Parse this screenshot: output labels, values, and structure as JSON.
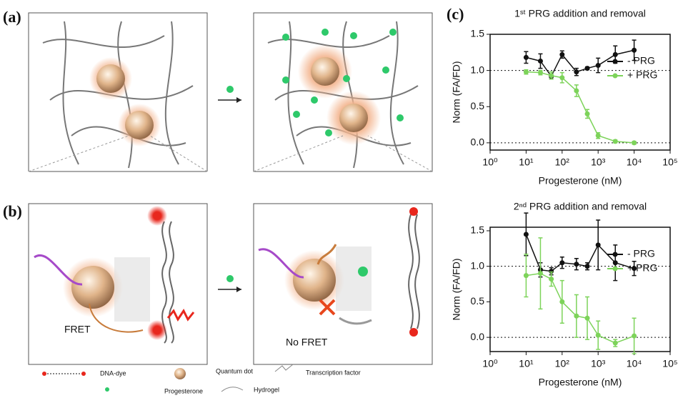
{
  "panel_labels": [
    "(a)",
    "(b)",
    "(c)"
  ],
  "diagram": {
    "fret": "FRET",
    "no_fret": "No FRET"
  },
  "legend": [
    "DNA-dye",
    "Quantum dot",
    "Transcription factor",
    "Progesterone",
    "Hydrogel"
  ],
  "chart_data": [
    {
      "type": "scatter",
      "title": "1ˢᵗ PRG addition and removal",
      "xlabel": "Progesterone (nM)",
      "ylabel": "Norm (FA/FD)",
      "xscale": "log",
      "xlim": [
        1,
        100000
      ],
      "xticks": [
        {
          "value": 1,
          "label": "10⁰"
        },
        {
          "value": 10,
          "label": "10¹"
        },
        {
          "value": 100,
          "label": "10²"
        },
        {
          "value": 1000,
          "label": "10³"
        },
        {
          "value": 10000,
          "label": "10⁴"
        },
        {
          "value": 100000,
          "label": "10⁵"
        }
      ],
      "ylim": [
        -0.1,
        1.5
      ],
      "yticks": [
        {
          "value": 0,
          "label": "0.0"
        },
        {
          "value": 0.5,
          "label": "0.5"
        },
        {
          "value": 1,
          "label": "1.0"
        },
        {
          "value": 1.5,
          "label": "1.5"
        }
      ],
      "hlines": [
        0,
        1
      ],
      "legend": "right",
      "series": [
        {
          "name": "-  PRG",
          "color": "#111111",
          "x": [
            10,
            25,
            50,
            100,
            250,
            500,
            1000,
            3000,
            10000
          ],
          "values": [
            1.18,
            1.13,
            0.92,
            1.22,
            0.98,
            1.03,
            1.07,
            1.22,
            1.28
          ],
          "errors": [
            0.08,
            0.1,
            0.02,
            0.05,
            0.05,
            0.02,
            0.1,
            0.12,
            0.14
          ]
        },
        {
          "name": "+ PRG",
          "color": "#7dd35a",
          "x": [
            10,
            25,
            50,
            100,
            250,
            500,
            1000,
            3000,
            10000
          ],
          "values": [
            0.98,
            0.97,
            0.93,
            0.9,
            0.72,
            0.4,
            0.1,
            0.02,
            0.0
          ],
          "errors": [
            0.03,
            0.03,
            0.05,
            0.07,
            0.08,
            0.06,
            0.04,
            0.02,
            0.02
          ]
        }
      ]
    },
    {
      "type": "scatter",
      "title": "2ⁿᵈ PRG addition and removal",
      "xlabel": "Progesterone (nM)",
      "ylabel": "Norm (FA/FD)",
      "xscale": "log",
      "xlim": [
        1,
        100000
      ],
      "xticks": [
        {
          "value": 1,
          "label": "10⁰"
        },
        {
          "value": 10,
          "label": "10¹"
        },
        {
          "value": 100,
          "label": "10²"
        },
        {
          "value": 1000,
          "label": "10³"
        },
        {
          "value": 10000,
          "label": "10⁴"
        },
        {
          "value": 100000,
          "label": "10⁵"
        }
      ],
      "ylim": [
        -0.2,
        1.55
      ],
      "yticks": [
        {
          "value": 0,
          "label": "0.0"
        },
        {
          "value": 0.5,
          "label": "0.5"
        },
        {
          "value": 1,
          "label": "1.0"
        },
        {
          "value": 1.5,
          "label": "1.5"
        }
      ],
      "hlines": [
        0,
        1
      ],
      "legend": "right",
      "series": [
        {
          "name": "-  PRG",
          "color": "#111111",
          "x": [
            10,
            25,
            50,
            100,
            250,
            500,
            1000,
            3000,
            10000
          ],
          "values": [
            1.45,
            0.95,
            0.93,
            1.05,
            1.03,
            1.0,
            1.3,
            1.05,
            0.97
          ],
          "errors": [
            0.3,
            0.1,
            0.05,
            0.08,
            0.08,
            0.05,
            0.35,
            0.25,
            0.1
          ]
        },
        {
          "name": "+ PRG",
          "color": "#7dd35a",
          "x": [
            10,
            25,
            50,
            100,
            250,
            500,
            1000,
            3000,
            10000
          ],
          "values": [
            0.87,
            0.9,
            0.82,
            0.5,
            0.3,
            0.27,
            0.03,
            -0.08,
            0.02
          ],
          "errors": [
            0.3,
            0.5,
            0.1,
            0.3,
            0.3,
            0.3,
            0.2,
            0.05,
            0.25
          ]
        }
      ]
    }
  ]
}
